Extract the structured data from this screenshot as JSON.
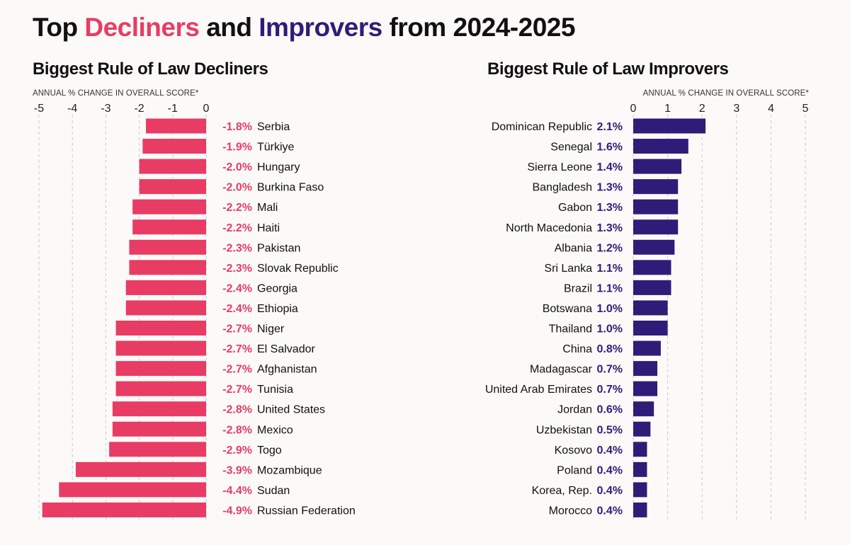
{
  "title": {
    "prefix": "Top ",
    "decliners_word": "Decliners",
    "middle": " and ",
    "improvers_word": "Improvers",
    "suffix": " from 2024-2025"
  },
  "colors": {
    "decliners": "#e83c64",
    "improvers": "#2e1d78",
    "grid": "#c8c8c8"
  },
  "chart_data": [
    {
      "type": "bar",
      "orientation": "horizontal",
      "title": "Biggest Rule of Law Decliners",
      "xlabel": "ANNUAL % CHANGE IN OVERALL SCORE*",
      "xlim": [
        -5,
        0
      ],
      "xticks": [
        "-5",
        "-4",
        "-3",
        "-2",
        "-1",
        "0"
      ],
      "grid": true,
      "categories": [
        "Serbia",
        "Türkiye",
        "Hungary",
        "Burkina Faso",
        "Mali",
        "Haiti",
        "Pakistan",
        "Slovak Republic",
        "Georgia",
        "Ethiopia",
        "Niger",
        "El Salvador",
        "Afghanistan",
        "Tunisia",
        "United States",
        "Mexico",
        "Togo",
        "Mozambique",
        "Sudan",
        "Russian Federation"
      ],
      "values": [
        -1.8,
        -1.9,
        -2.0,
        -2.0,
        -2.2,
        -2.2,
        -2.3,
        -2.3,
        -2.4,
        -2.4,
        -2.7,
        -2.7,
        -2.7,
        -2.7,
        -2.8,
        -2.8,
        -2.9,
        -3.9,
        -4.4,
        -4.9
      ],
      "value_labels": [
        "-1.8%",
        "-1.9%",
        "-2.0%",
        "-2.0%",
        "-2.2%",
        "-2.2%",
        "-2.3%",
        "-2.3%",
        "-2.4%",
        "-2.4%",
        "-2.7%",
        "-2.7%",
        "-2.7%",
        "-2.7%",
        "-2.8%",
        "-2.8%",
        "-2.9%",
        "-3.9%",
        "-4.4%",
        "-4.9%"
      ]
    },
    {
      "type": "bar",
      "orientation": "horizontal",
      "title": "Biggest Rule of Law Improvers",
      "xlabel": "ANNUAL % CHANGE IN OVERALL SCORE*",
      "xlim": [
        0,
        5
      ],
      "xticks": [
        "0",
        "1",
        "2",
        "3",
        "4",
        "5"
      ],
      "grid": true,
      "categories": [
        "Dominican Republic",
        "Senegal",
        "Sierra Leone",
        "Bangladesh",
        "Gabon",
        "North Macedonia",
        "Albania",
        "Sri Lanka",
        "Brazil",
        "Botswana",
        "Thailand",
        "China",
        "Madagascar",
        "United Arab Emirates",
        "Jordan",
        "Uzbekistan",
        "Kosovo",
        "Poland",
        "Korea, Rep.",
        "Morocco"
      ],
      "values": [
        2.1,
        1.6,
        1.4,
        1.3,
        1.3,
        1.3,
        1.2,
        1.1,
        1.1,
        1.0,
        1.0,
        0.8,
        0.7,
        0.7,
        0.6,
        0.5,
        0.4,
        0.4,
        0.4,
        0.4
      ],
      "value_labels": [
        "2.1%",
        "1.6%",
        "1.4%",
        "1.3%",
        "1.3%",
        "1.3%",
        "1.2%",
        "1.1%",
        "1.1%",
        "1.0%",
        "1.0%",
        "0.8%",
        "0.7%",
        "0.7%",
        "0.6%",
        "0.5%",
        "0.4%",
        "0.4%",
        "0.4%",
        "0.4%"
      ]
    }
  ]
}
